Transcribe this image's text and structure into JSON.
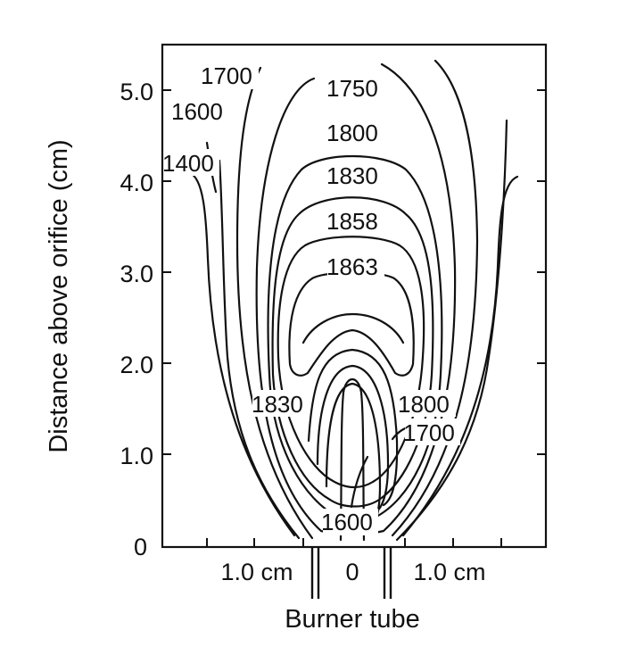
{
  "chart_data": {
    "type": "contour",
    "ylabel": "Distance above orifice (cm)",
    "xlabel": "Burner tube",
    "y_ticks": [
      "0",
      "1.0",
      "2.0",
      "3.0",
      "4.0",
      "5.0"
    ],
    "ylim": [
      0,
      5.4
    ],
    "x_ticks": [
      "1.0 cm",
      "0",
      "1.0 cm"
    ],
    "xlim_cm": [
      -2.05,
      2.05
    ],
    "contour_labels": [
      {
        "text": "1700",
        "r": -1.55,
        "h": 5.15
      },
      {
        "text": "1600",
        "r": -1.63,
        "h": 4.77
      },
      {
        "text": "1400",
        "r": -1.72,
        "h": 4.2
      },
      {
        "text": "1750",
        "r": 0.03,
        "h": 5.04
      },
      {
        "text": "1800",
        "r": 0.03,
        "h": 4.55
      },
      {
        "text": "1830",
        "r": 0.03,
        "h": 4.08
      },
      {
        "text": "1858",
        "r": 0.03,
        "h": 3.58
      },
      {
        "text": "1863",
        "r": 0.03,
        "h": 3.08
      },
      {
        "text": "1830",
        "r": -0.95,
        "h": 1.55
      },
      {
        "text": "1800",
        "r": 0.96,
        "h": 1.55
      },
      {
        "text": "1700",
        "r": 1.08,
        "h": 1.23
      },
      {
        "text": "1600",
        "r": -0.05,
        "h": 0.25
      }
    ]
  }
}
